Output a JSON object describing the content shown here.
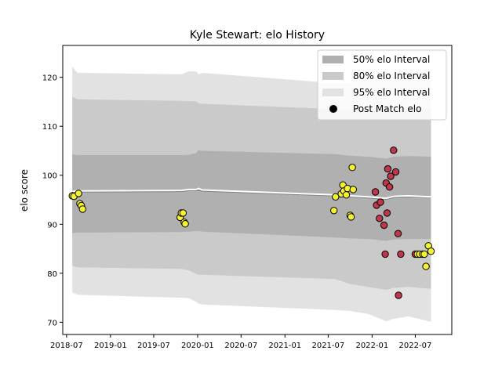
{
  "chart_data": {
    "type": "line",
    "title": "Kyle Stewart: elo History",
    "xlabel": "",
    "ylabel": "elo score",
    "x_axis_type": "date",
    "xlim": [
      "2018-06-15",
      "2022-12-01"
    ],
    "ylim": [
      67.5,
      126.5
    ],
    "x_ticks": [
      "2018-07-01",
      "2019-01-01",
      "2019-07-01",
      "2020-01-01",
      "2020-07-01",
      "2021-01-01",
      "2021-07-01",
      "2022-01-01",
      "2022-07-01"
    ],
    "x_tick_labels": [
      "2018-07",
      "2019-01",
      "2019-07",
      "2020-01",
      "2020-07",
      "2021-01",
      "2021-07",
      "2022-01",
      "2022-07"
    ],
    "y_ticks": [
      70,
      80,
      90,
      100,
      110,
      120
    ],
    "legend_position": "top-right",
    "legend": [
      {
        "label": "50% elo Interval",
        "color": "#b0b0b0",
        "kind": "patch"
      },
      {
        "label": "80% elo Interval",
        "color": "#cacaca",
        "kind": "patch"
      },
      {
        "label": "95% elo Interval",
        "color": "#e2e2e2",
        "kind": "patch"
      },
      {
        "label": "Post Match elo",
        "color": "#000000",
        "kind": "marker"
      }
    ],
    "band_colors": {
      "ci95": "#e2e2e2",
      "ci80": "#cacaca",
      "ci50": "#b0b0b0"
    },
    "mean_line_color": "#ffffff",
    "median_line_color": "#808080",
    "series": [
      {
        "name": "Mean elo",
        "x": [
          "2018-07-25",
          "2018-08-15",
          "2019-10-25",
          "2019-11-25",
          "2019-12-25",
          "2020-01-05",
          "2020-01-20",
          "2021-08-01",
          "2021-10-01",
          "2021-12-15",
          "2022-03-01",
          "2022-04-01",
          "2022-06-01",
          "2022-09-05"
        ],
        "mean": [
          96.7,
          96.8,
          96.9,
          97.1,
          97.1,
          97.3,
          97.0,
          96.0,
          95.8,
          95.6,
          95.3,
          95.7,
          95.8,
          95.6
        ],
        "median": [
          96.5,
          96.6,
          96.7,
          96.9,
          96.9,
          96.9,
          96.8,
          95.8,
          95.6,
          95.4,
          95.1,
          95.5,
          95.6,
          95.5
        ],
        "ci50_lower": [
          88.2,
          88.3,
          88.4,
          88.5,
          88.6,
          88.6,
          88.5,
          87.3,
          87.1,
          87.0,
          86.6,
          86.9,
          87.0,
          87.0
        ],
        "ci50_upper": [
          104.3,
          104.1,
          104.1,
          104.2,
          104.5,
          105.1,
          105.0,
          104.3,
          104.0,
          103.8,
          103.4,
          103.8,
          103.9,
          103.8
        ],
        "ci80_lower": [
          81.5,
          81.2,
          80.9,
          80.6,
          79.9,
          79.7,
          79.7,
          78.8,
          77.8,
          77.2,
          76.6,
          77.0,
          77.2,
          76.8
        ],
        "ci80_upper": [
          116.0,
          115.5,
          115.2,
          115.1,
          115.1,
          114.7,
          114.6,
          113.5,
          113.4,
          113.6,
          113.5,
          113.6,
          113.6,
          113.7
        ],
        "ci95_lower": [
          76.1,
          75.6,
          75.0,
          74.9,
          74.2,
          73.8,
          73.6,
          72.5,
          72.3,
          71.7,
          70.2,
          70.7,
          71.2,
          70.1
        ],
        "ci95_upper": [
          122.2,
          120.9,
          120.6,
          121.2,
          121.2,
          120.6,
          120.9,
          118.8,
          118.8,
          120.1,
          119.7,
          120.1,
          119.8,
          121.5
        ]
      },
      {
        "name": "Post Match elo",
        "points": [
          {
            "x": "2018-07-25",
            "y": 95.8,
            "result": "win"
          },
          {
            "x": "2018-08-01",
            "y": 95.7,
            "result": "win"
          },
          {
            "x": "2018-08-20",
            "y": 96.3,
            "result": "win"
          },
          {
            "x": "2018-08-26",
            "y": 94.2,
            "result": "win"
          },
          {
            "x": "2018-09-01",
            "y": 93.8,
            "result": "win"
          },
          {
            "x": "2018-09-06",
            "y": 93.1,
            "result": "win"
          },
          {
            "x": "2019-10-20",
            "y": 91.4,
            "result": "win"
          },
          {
            "x": "2019-10-25",
            "y": 92.3,
            "result": "win"
          },
          {
            "x": "2019-11-01",
            "y": 92.3,
            "result": "win"
          },
          {
            "x": "2019-11-06",
            "y": 90.4,
            "result": "win"
          },
          {
            "x": "2019-11-10",
            "y": 90.1,
            "result": "win"
          },
          {
            "x": "2021-07-25",
            "y": 92.8,
            "result": "win"
          },
          {
            "x": "2021-08-01",
            "y": 95.6,
            "result": "win"
          },
          {
            "x": "2021-08-25",
            "y": 96.2,
            "result": "win"
          },
          {
            "x": "2021-09-01",
            "y": 98.0,
            "result": "win"
          },
          {
            "x": "2021-09-05",
            "y": 96.8,
            "result": "win"
          },
          {
            "x": "2021-09-15",
            "y": 96.0,
            "result": "win"
          },
          {
            "x": "2021-09-20",
            "y": 97.3,
            "result": "win"
          },
          {
            "x": "2021-10-01",
            "y": 91.8,
            "result": "win"
          },
          {
            "x": "2021-10-05",
            "y": 91.5,
            "result": "win"
          },
          {
            "x": "2021-10-10",
            "y": 101.6,
            "result": "win"
          },
          {
            "x": "2021-10-14",
            "y": 97.1,
            "result": "win"
          },
          {
            "x": "2022-01-15",
            "y": 96.6,
            "result": "loss"
          },
          {
            "x": "2022-01-20",
            "y": 93.9,
            "result": "loss"
          },
          {
            "x": "2022-02-01",
            "y": 91.2,
            "result": "loss"
          },
          {
            "x": "2022-02-05",
            "y": 94.5,
            "result": "loss"
          },
          {
            "x": "2022-02-20",
            "y": 89.8,
            "result": "loss"
          },
          {
            "x": "2022-02-25",
            "y": 83.9,
            "result": "loss"
          },
          {
            "x": "2022-03-01",
            "y": 98.4,
            "result": "loss"
          },
          {
            "x": "2022-03-05",
            "y": 92.3,
            "result": "loss"
          },
          {
            "x": "2022-03-08",
            "y": 101.3,
            "result": "loss"
          },
          {
            "x": "2022-03-15",
            "y": 97.6,
            "result": "loss"
          },
          {
            "x": "2022-03-20",
            "y": 99.8,
            "result": "loss"
          },
          {
            "x": "2022-04-01",
            "y": 105.1,
            "result": "loss"
          },
          {
            "x": "2022-04-10",
            "y": 100.7,
            "result": "loss"
          },
          {
            "x": "2022-04-20",
            "y": 88.1,
            "result": "loss"
          },
          {
            "x": "2022-04-22",
            "y": 75.5,
            "result": "loss"
          },
          {
            "x": "2022-05-01",
            "y": 83.9,
            "result": "loss"
          },
          {
            "x": "2022-07-01",
            "y": 83.9,
            "result": "loss"
          },
          {
            "x": "2022-07-10",
            "y": 83.9,
            "result": "win"
          },
          {
            "x": "2022-07-20",
            "y": 83.9,
            "result": "win"
          },
          {
            "x": "2022-08-01",
            "y": 83.9,
            "result": "win"
          },
          {
            "x": "2022-08-08",
            "y": 83.9,
            "result": "win"
          },
          {
            "x": "2022-08-15",
            "y": 81.4,
            "result": "win"
          },
          {
            "x": "2022-08-25",
            "y": 85.6,
            "result": "win"
          },
          {
            "x": "2022-09-05",
            "y": 84.5,
            "result": "win"
          }
        ]
      }
    ],
    "marker_colors": {
      "win": "#f5f232",
      "loss": "#c0364a",
      "edge": "#000000"
    }
  }
}
